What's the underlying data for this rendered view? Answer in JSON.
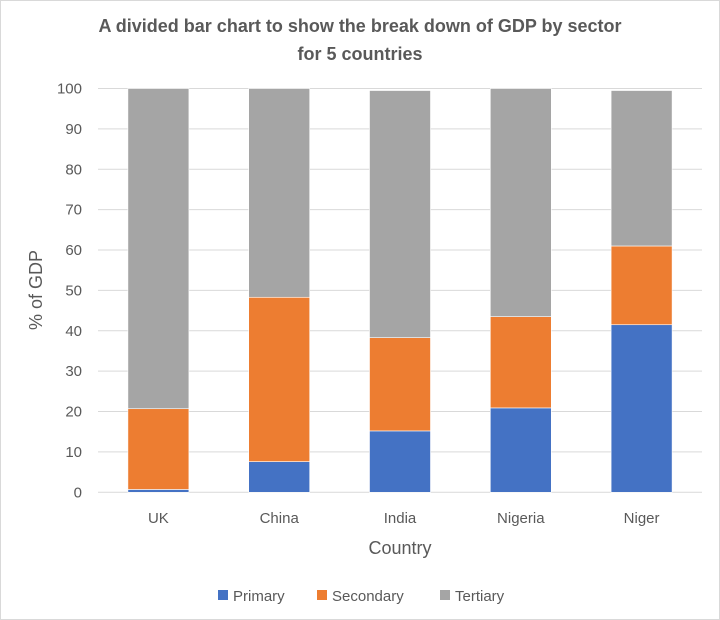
{
  "chart_data": {
    "type": "bar",
    "stacked": true,
    "title": "A divided bar chart to show the break down of GDP by sector for 5 countries",
    "title_lines": [
      "A divided bar chart to show the break down of GDP by sector",
      "for 5 countries"
    ],
    "xlabel": "Country",
    "ylabel": "% of GDP",
    "ylim": [
      0,
      100
    ],
    "yticks": [
      0,
      10,
      20,
      30,
      40,
      50,
      60,
      70,
      80,
      90,
      100
    ],
    "grid": true,
    "legend": "bottom",
    "categories": [
      "UK",
      "China",
      "India",
      "Nigeria",
      "Niger"
    ],
    "series": [
      {
        "name": "Primary",
        "color": "#4472c4",
        "values": [
          0.7,
          7.6,
          15.2,
          20.9,
          41.5
        ]
      },
      {
        "name": "Secondary",
        "color": "#ed7d31",
        "values": [
          20.0,
          40.7,
          23.1,
          22.6,
          19.5
        ]
      },
      {
        "name": "Tertiary",
        "color": "#a5a5a5",
        "values": [
          79.3,
          51.7,
          61.2,
          56.5,
          38.5
        ]
      }
    ]
  }
}
